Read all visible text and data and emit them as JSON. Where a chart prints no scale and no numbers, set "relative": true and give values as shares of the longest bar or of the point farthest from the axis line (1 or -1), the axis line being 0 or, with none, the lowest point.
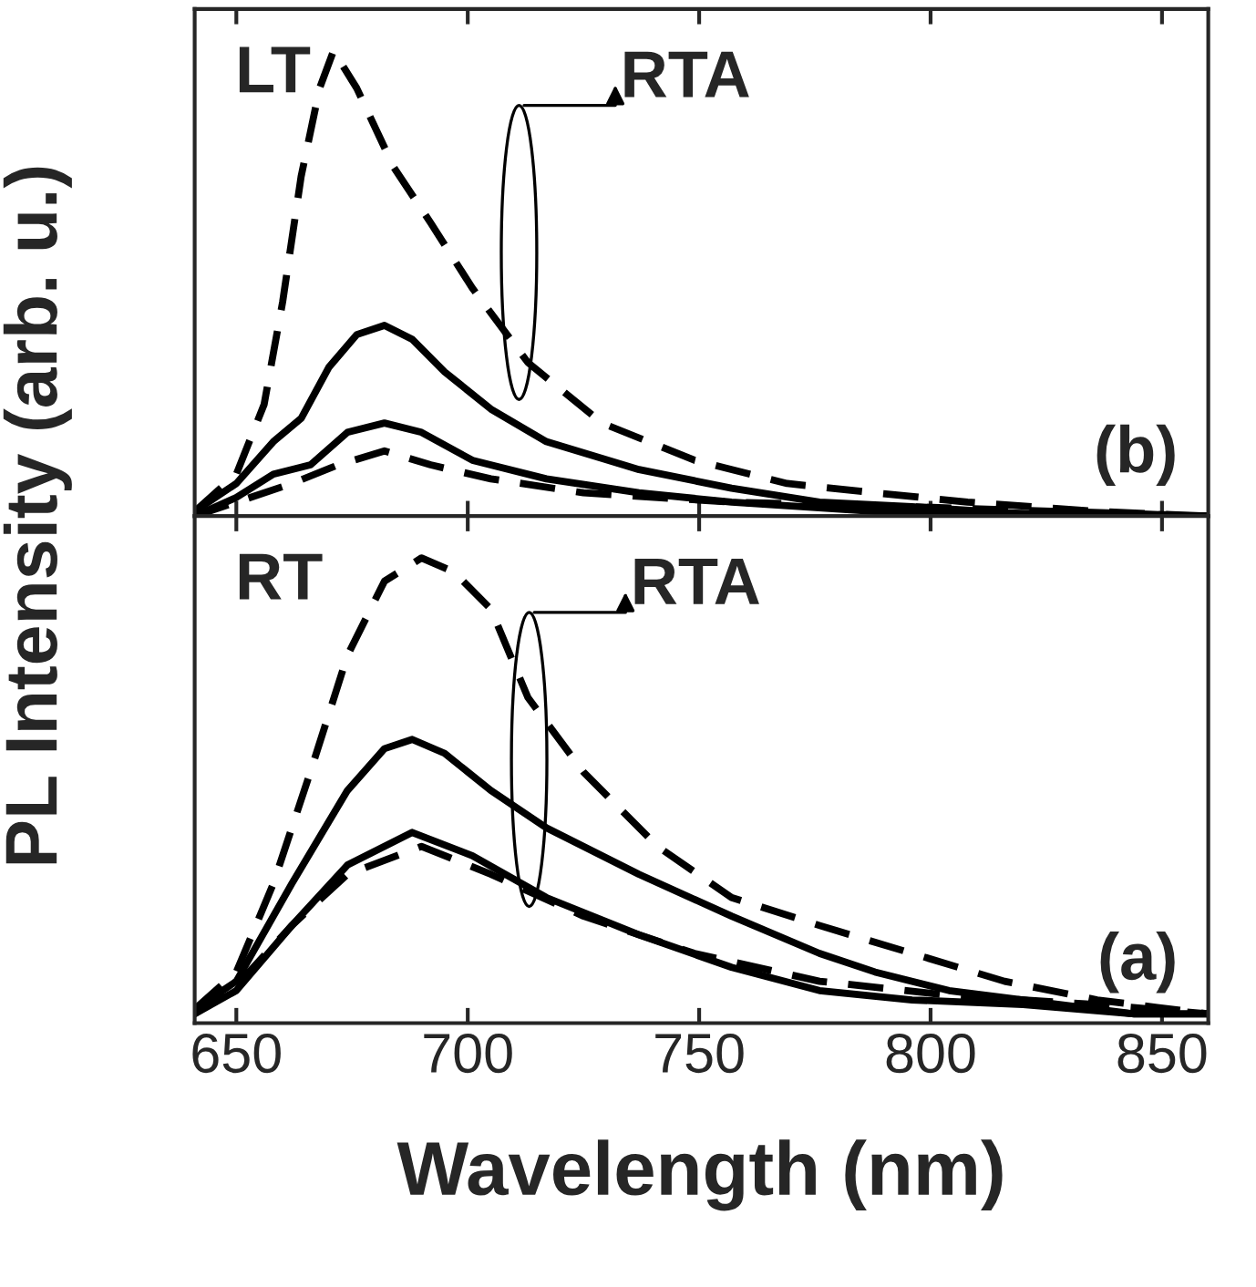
{
  "chart_data": [
    {
      "type": "line",
      "relative": true,
      "xlim": [
        641,
        860
      ],
      "xticks": [
        650,
        700,
        750,
        800,
        850
      ],
      "tick_labels": false,
      "annotations": [
        "LT",
        "RTA",
        "(b)"
      ],
      "series": [
        {
          "color": "#000000",
          "line_style": "dashed",
          "x": [
            641,
            650,
            656,
            660,
            664,
            668,
            671,
            676,
            684,
            692,
            701,
            713,
            729,
            749,
            769,
            788,
            808,
            836,
            860
          ],
          "values": [
            0.01,
            0.09,
            0.24,
            0.46,
            0.73,
            0.92,
            1,
            0.92,
            0.75,
            0.63,
            0.49,
            0.33,
            0.2,
            0.12,
            0.07,
            0.05,
            0.03,
            0.01,
            0
          ]
        },
        {
          "color": "#000000",
          "line_style": "solid",
          "x": [
            641,
            650,
            658,
            664,
            670,
            676,
            682,
            688,
            695,
            705,
            717,
            737,
            757,
            776,
            796,
            828,
            860
          ],
          "values": [
            0.01,
            0.07,
            0.16,
            0.21,
            0.32,
            0.39,
            0.41,
            0.38,
            0.31,
            0.23,
            0.16,
            0.1,
            0.06,
            0.03,
            0.02,
            0,
            0
          ]
        },
        {
          "color": "#000000",
          "line_style": "solid",
          "x": [
            641,
            650,
            658,
            666,
            674,
            682,
            690,
            701,
            717,
            737,
            757,
            788,
            860
          ],
          "values": [
            0,
            0.04,
            0.09,
            0.11,
            0.18,
            0.2,
            0.18,
            0.12,
            0.08,
            0.05,
            0.03,
            0.01,
            0
          ]
        },
        {
          "color": "#000000",
          "line_style": "dashed",
          "x": [
            641,
            650,
            662,
            672,
            682,
            692,
            705,
            725,
            757,
            796,
            860
          ],
          "values": [
            0,
            0.03,
            0.07,
            0.11,
            0.14,
            0.11,
            0.08,
            0.05,
            0.03,
            0.02,
            0
          ]
        }
      ]
    },
    {
      "type": "line",
      "relative": true,
      "xlim": [
        641,
        860
      ],
      "xticks": [
        650,
        700,
        750,
        800,
        850
      ],
      "tick_labels": "x",
      "xlabel": "Wavelength (nm)",
      "ylabel": "PL Intensity (arb. u.)",
      "annotations": [
        "RT",
        "RTA",
        "(a)"
      ],
      "series": [
        {
          "color": "#000000",
          "line_style": "dashed",
          "x": [
            641,
            650,
            658,
            666,
            674,
            682,
            690,
            697,
            705,
            713,
            725,
            741,
            757,
            776,
            796,
            816,
            836,
            860
          ],
          "values": [
            0.03,
            0.11,
            0.3,
            0.54,
            0.79,
            0.95,
            1,
            0.97,
            0.89,
            0.7,
            0.54,
            0.38,
            0.27,
            0.21,
            0.15,
            0.09,
            0.05,
            0.02
          ]
        },
        {
          "color": "#000000",
          "line_style": "solid",
          "x": [
            641,
            650,
            662,
            674,
            682,
            688,
            695,
            705,
            717,
            737,
            757,
            776,
            788,
            804,
            820,
            844,
            860
          ],
          "values": [
            0.03,
            0.09,
            0.3,
            0.5,
            0.59,
            0.61,
            0.58,
            0.5,
            0.42,
            0.32,
            0.23,
            0.15,
            0.11,
            0.07,
            0.05,
            0.02,
            0.02
          ]
        },
        {
          "color": "#000000",
          "line_style": "solid",
          "x": [
            641,
            650,
            662,
            674,
            688,
            701,
            717,
            737,
            757,
            776,
            796,
            820,
            844,
            860
          ],
          "values": [
            0.02,
            0.07,
            0.21,
            0.34,
            0.41,
            0.36,
            0.27,
            0.19,
            0.12,
            0.07,
            0.05,
            0.04,
            0.02,
            0.02
          ]
        },
        {
          "color": "#000000",
          "line_style": "dashed",
          "x": [
            641,
            650,
            662,
            674,
            690,
            705,
            725,
            749,
            776,
            804,
            836,
            860
          ],
          "values": [
            0.02,
            0.08,
            0.21,
            0.32,
            0.38,
            0.32,
            0.23,
            0.15,
            0.09,
            0.06,
            0.04,
            0.02
          ]
        }
      ]
    }
  ]
}
